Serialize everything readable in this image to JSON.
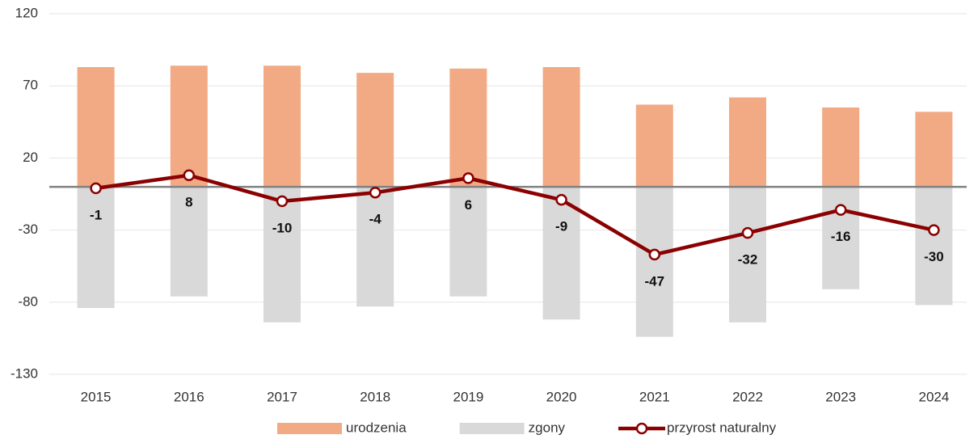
{
  "chart_data": {
    "type": "bar_line",
    "categories": [
      "2015",
      "2016",
      "2017",
      "2018",
      "2019",
      "2020",
      "2021",
      "2022",
      "2023",
      "2024"
    ],
    "series": [
      {
        "name": "urodzenia",
        "type": "bar",
        "color": "#f2aa84",
        "values": [
          83,
          84,
          84,
          79,
          82,
          83,
          57,
          62,
          55,
          52
        ]
      },
      {
        "name": "zgony",
        "type": "bar",
        "color": "#d9d9d9",
        "values": [
          -84,
          -76,
          -94,
          -83,
          -76,
          -92,
          -104,
          -94,
          -71,
          -82
        ]
      },
      {
        "name": "przyrost naturalny",
        "type": "line",
        "color": "#8b0000",
        "values": [
          -1,
          8,
          -10,
          -4,
          6,
          -9,
          -47,
          -32,
          -16,
          -30
        ]
      }
    ],
    "ylim": [
      -130,
      120
    ],
    "yticks": [
      -130,
      -80,
      -30,
      20,
      70,
      120
    ],
    "grid": true,
    "legend": "bottom"
  }
}
